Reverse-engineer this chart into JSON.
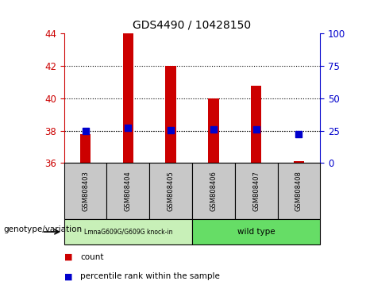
{
  "title": "GDS4490 / 10428150",
  "samples": [
    "GSM808403",
    "GSM808404",
    "GSM808405",
    "GSM808406",
    "GSM808407",
    "GSM808408"
  ],
  "count_values": [
    37.8,
    44.0,
    42.0,
    40.0,
    40.8,
    36.1
  ],
  "percentile_values": [
    25.0,
    27.0,
    25.5,
    26.0,
    26.0,
    22.0
  ],
  "ylim_left": [
    36,
    44
  ],
  "ylim_right": [
    0,
    100
  ],
  "yticks_left": [
    36,
    38,
    40,
    42,
    44
  ],
  "yticks_right": [
    0,
    25,
    50,
    75,
    100
  ],
  "count_base": 36,
  "bar_color": "#cc0000",
  "dot_color": "#0000cc",
  "bar_width": 0.25,
  "dot_size": 30,
  "left_axis_color": "#cc0000",
  "right_axis_color": "#0000cc",
  "sample_box_color": "#c8c8c8",
  "group1_label": "LmnaG609G/G609G knock-in",
  "group2_label": "wild type",
  "group1_color": "#c8f0b8",
  "group2_color": "#66dd66",
  "legend_items": [
    "count",
    "percentile rank within the sample"
  ],
  "genotype_label": "genotype/variation",
  "grid_ticks": [
    38,
    40,
    42
  ]
}
